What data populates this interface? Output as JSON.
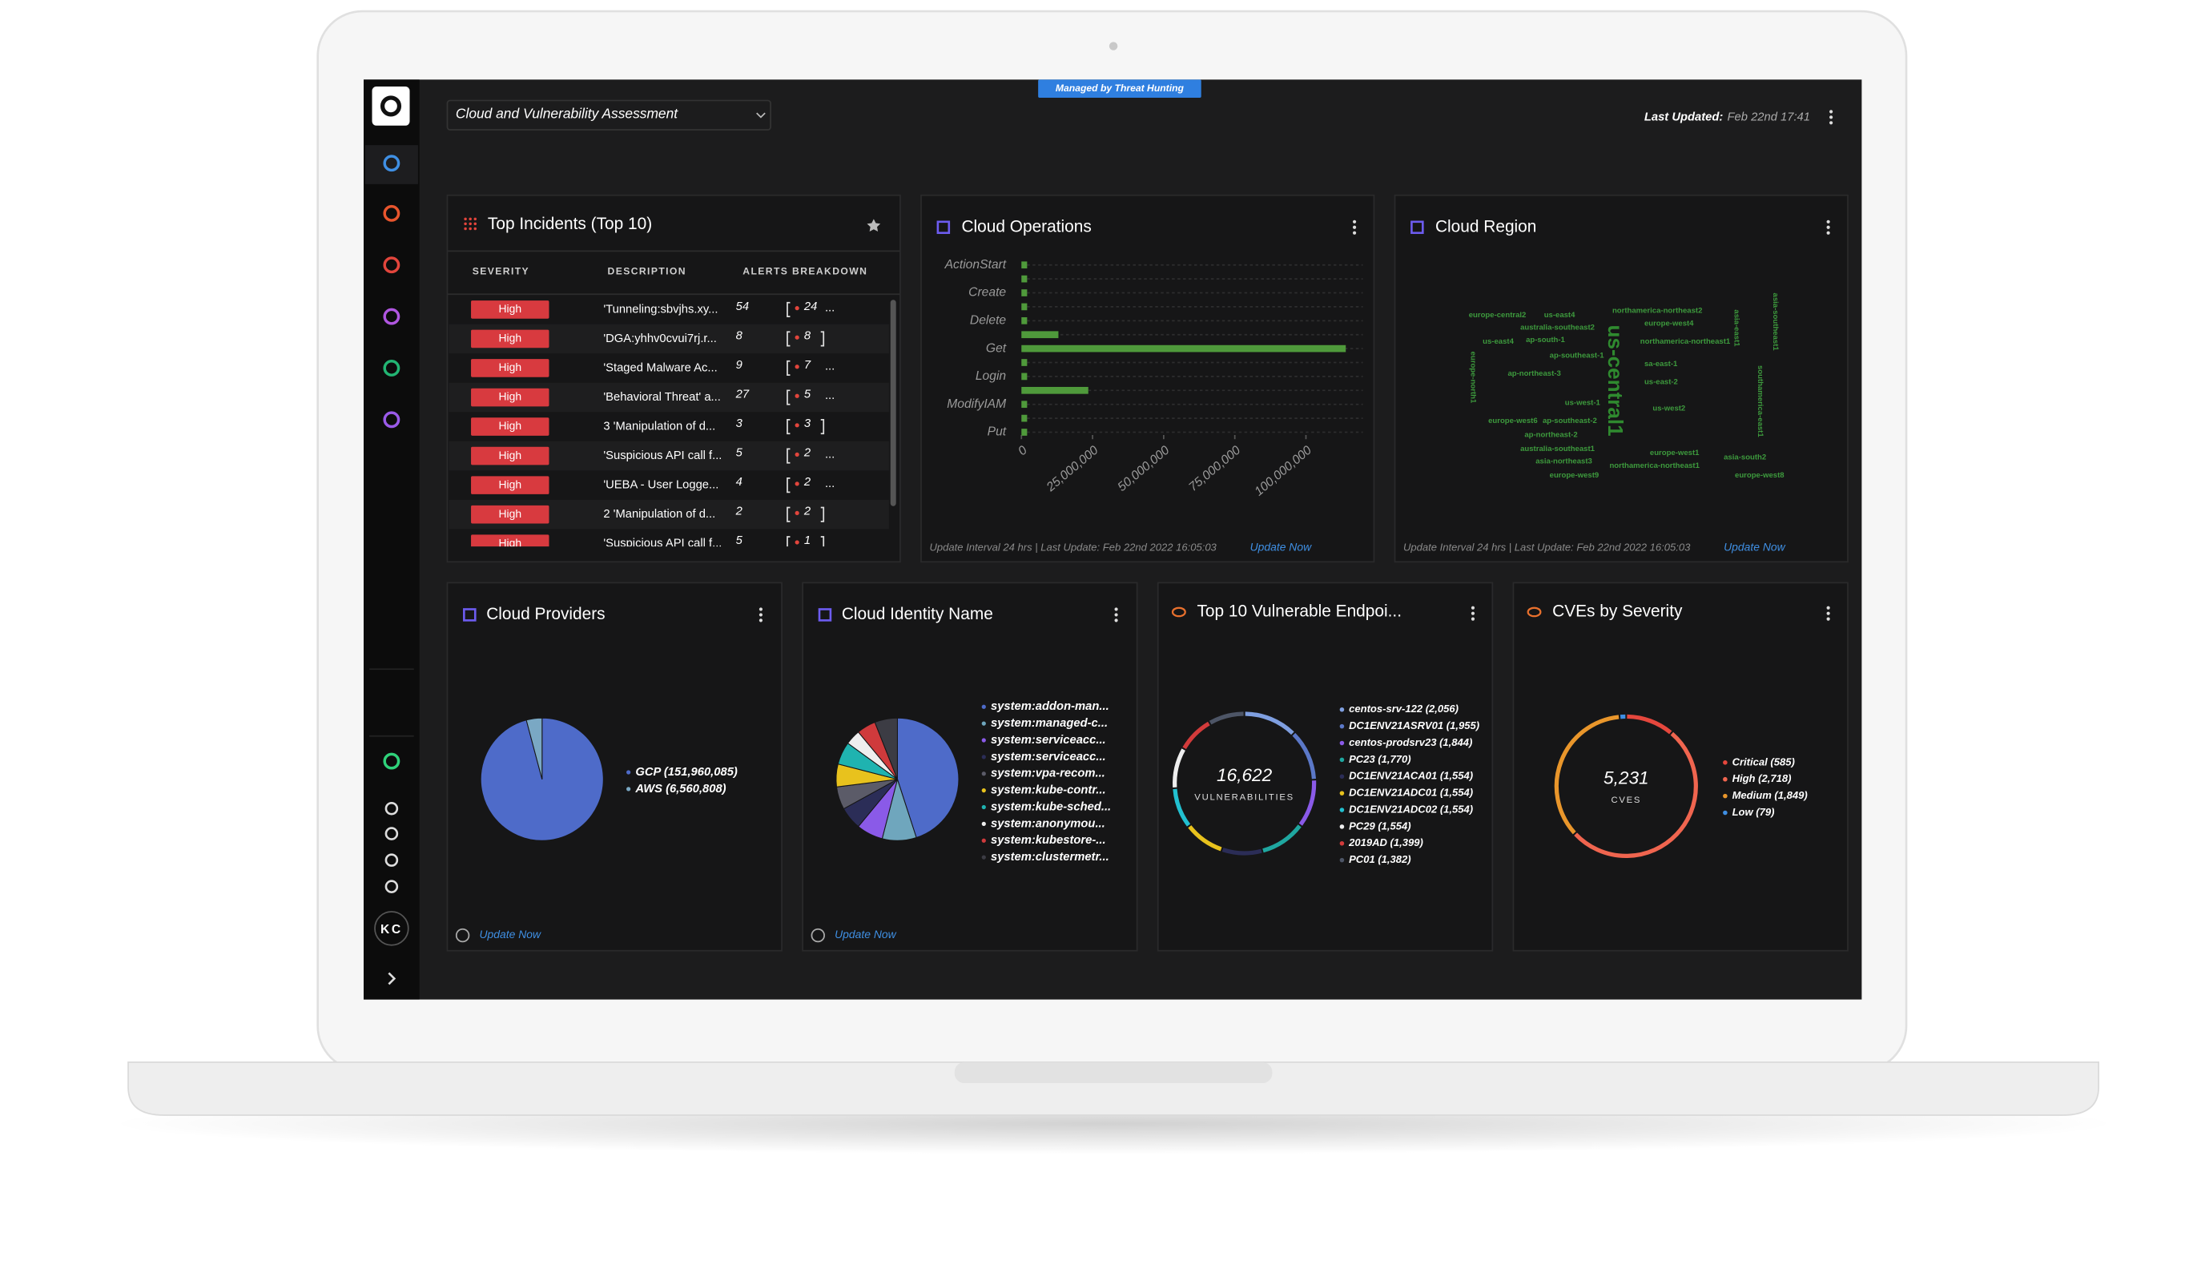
{
  "header": {
    "dashboard": "Cloud and Vulnerability Assessment",
    "badge": "Managed by Threat Hunting",
    "last_updated_label": "Last Updated:",
    "last_updated_value": "Feb 22nd 17:41"
  },
  "sidebar": {
    "user": "KC"
  },
  "incidents": {
    "title": "Top Incidents (Top 10)",
    "columns": [
      "SEVERITY",
      "DESCRIPTION",
      "ALERTS BREAKDOWN"
    ],
    "rows": [
      {
        "severity": "High",
        "description": "'Tunneling:sbvjhs.xy...",
        "alerts": 54,
        "breakdown": 24,
        "more": "..."
      },
      {
        "severity": "High",
        "description": "'DGA:yhhv0cvui7rj.r...",
        "alerts": 8,
        "breakdown": 8
      },
      {
        "severity": "High",
        "description": "'Staged Malware Ac...",
        "alerts": 9,
        "breakdown": 7,
        "more": "..."
      },
      {
        "severity": "High",
        "description": "'Behavioral Threat' a...",
        "alerts": 27,
        "breakdown": 5,
        "more": "..."
      },
      {
        "severity": "High",
        "description": "3 'Manipulation of d...",
        "alerts": 3,
        "breakdown": 3
      },
      {
        "severity": "High",
        "description": "'Suspicious API call f...",
        "alerts": 5,
        "breakdown": 2,
        "more": "..."
      },
      {
        "severity": "High",
        "description": "'UEBA - User Logge...",
        "alerts": 4,
        "breakdown": 2,
        "more": "..."
      },
      {
        "severity": "High",
        "description": "2 'Manipulation of d...",
        "alerts": 2,
        "breakdown": 2
      },
      {
        "severity": "High",
        "description": "'Suspicious API call f...",
        "alerts": 5,
        "breakdown": 1
      }
    ]
  },
  "cloud_region": {
    "title": "Cloud Region",
    "words": [
      "europe-central2",
      "us-east4",
      "northamerica-northeast2",
      "australia-southeast2",
      "europe-west4",
      "us-east4",
      "ap-south-1",
      "northamerica-northeast1",
      "ap-southeast-1",
      "sa-east-1",
      "ap-northeast-3",
      "us-east-2",
      "us-west-1",
      "us-west2",
      "europe-west6",
      "ap-southeast-2",
      "ap-northeast-2",
      "australia-southeast1",
      "europe-west1",
      "asia-northeast3",
      "asia-south2",
      "northamerica-northeast1",
      "europe-west9",
      "europe-west8",
      "asia-east1",
      "europe-north1",
      "asia-southeast1",
      "southamerica-east1",
      "us-central1"
    ],
    "footer": "Update Interval 24 hrs | Last Update: Feb 22nd 2022 16:05:03",
    "action": "Update Now"
  },
  "chart_data": [
    {
      "type": "bar",
      "title": "Cloud Operations",
      "orientation": "horizontal",
      "categories": [
        "ActionStart",
        null,
        "Create",
        null,
        "Delete",
        null,
        "Get",
        null,
        "Login",
        null,
        "ModifyIAM",
        null,
        "Put"
      ],
      "values": [
        2000000,
        2000000,
        2000000,
        2000000,
        2000000,
        13000000,
        114000000,
        2000000,
        2000000,
        23500000,
        2000000,
        2000000,
        2000000
      ],
      "color": "#4f9a3b",
      "xlim": [
        0,
        120000000
      ],
      "xticks": [
        0,
        {
          "value": 25000000,
          "label": "25,000,000"
        },
        {
          "value": 50000000,
          "label": "50,000,000"
        },
        {
          "value": 75000000,
          "label": "75,000,000"
        },
        {
          "value": 100000000,
          "label": "100,000,000"
        }
      ],
      "footer": "Update Interval 24 hrs | Last Update: Feb 22nd 2022 16:05:03",
      "action": "Update Now"
    },
    {
      "type": "pie",
      "title": "Cloud Providers",
      "categories": [
        "GCP (151,960,085)",
        "AWS (6,560,808)"
      ],
      "values": [
        151960085,
        6560808
      ],
      "colors": [
        "#4e6bc9",
        "#7aa8c4"
      ],
      "action": "Update Now"
    },
    {
      "type": "pie",
      "title": "Cloud Identity Name",
      "categories": [
        "system:addon-man...",
        "system:managed-c...",
        "system:serviceacc...",
        "system:serviceacc...",
        "system:vpa-recom...",
        "system:kube-contr...",
        "system:kube-sched...",
        "system:anonymou...",
        "system:kubestore-...",
        "system:clustermetr..."
      ],
      "values": [
        45,
        9,
        7,
        6,
        6,
        6,
        6,
        4,
        5,
        6
      ],
      "colors": [
        "#4e6bc9",
        "#6fa6bd",
        "#8a5ae8",
        "#2b2d57",
        "#5b5b68",
        "#e8c21d",
        "#1fb3b0",
        "#eeeeee",
        "#cf3a3c",
        "#3c3c44"
      ],
      "action": "Update Now"
    },
    {
      "type": "donut",
      "title": "Top 10 Vulnerable Endpoi...",
      "center_value": "16,622",
      "center_label": "VULNERABILITIES",
      "categories": [
        "centos-srv-122 (2,056)",
        "DC1ENV21ASRV01 (1,955)",
        "centos-prodsrv23 (1,844)",
        "PC23 (1,770)",
        "DC1ENV21ACA01 (1,554)",
        "DC1ENV21ADC01 (1,554)",
        "DC1ENV21ADC02 (1,554)",
        "PC29 (1,554)",
        "2019AD (1,399)",
        "PC01 (1,382)"
      ],
      "values": [
        2056,
        1955,
        1844,
        1770,
        1554,
        1554,
        1554,
        1554,
        1399,
        1382
      ],
      "colors": [
        "#7f9fe0",
        "#5b78c8",
        "#8a5ae8",
        "#1fa7a0",
        "#2b2d57",
        "#e8c21d",
        "#22c0d0",
        "#eeeeee",
        "#d23b3b",
        "#4d5566"
      ]
    },
    {
      "type": "donut",
      "title": "CVEs by Severity",
      "center_value": "5,231",
      "center_label": "CVES",
      "categories": [
        "Critical (585)",
        "High (2,718)",
        "Medium (1,849)",
        "Low (79)"
      ],
      "values": [
        585,
        2718,
        1849,
        79
      ],
      "colors": [
        "#e5473d",
        "#f0654f",
        "#e9962b",
        "#3f8fe3"
      ]
    }
  ]
}
